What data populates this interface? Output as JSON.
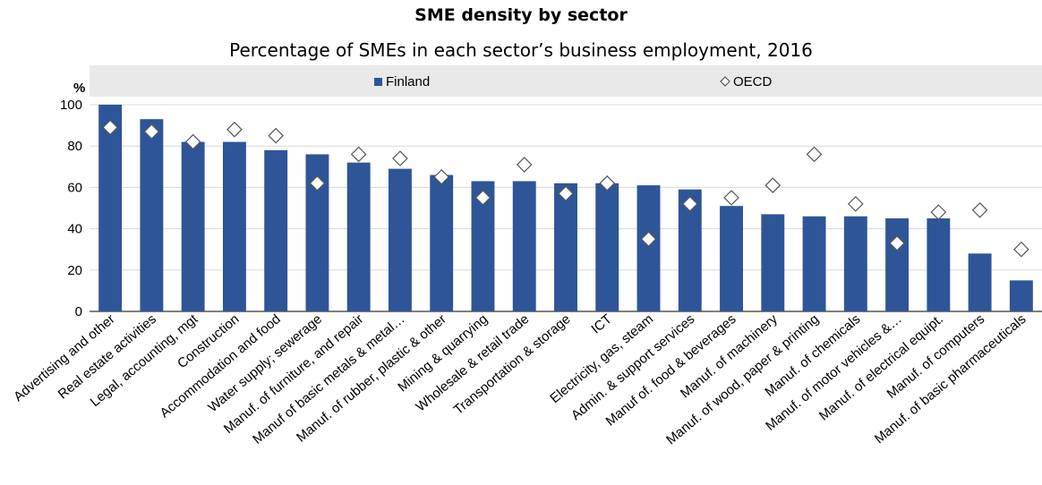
{
  "chart_data": {
    "type": "bar",
    "title": "SME density by sector",
    "subtitle": "Percentage of SMEs in each sector’s business employment, 2016",
    "ylabel": "%",
    "ylim": [
      0,
      100
    ],
    "yticks": [
      0,
      20,
      40,
      60,
      80,
      100
    ],
    "legend_position": "top",
    "categories": [
      "Advertising and other",
      "Real estate activities",
      "Legal, accounting, mgt",
      "Construction",
      "Accommodation and food",
      "Water supply; sewerage",
      "Manuf. of furniture, and repair",
      "Manuf of basic metals & metal…",
      "Manuf. of rubber, plastic & other",
      "Mining & quarrying",
      "Wholesale & retail trade",
      "Transportation & storage",
      "ICT",
      "Electricity, gas, steam",
      "Admin. & support services",
      "Manuf of. food & beverages",
      "Manuf. of machinery",
      "Manuf. of wood, paper & printing",
      "Manuf. of chemicals",
      "Manuf. of motor vehicles &…",
      "Manuf. of electrical equipt.",
      "Manuf. of computers",
      "Manuf. of basic pharmaceuticals"
    ],
    "series": [
      {
        "name": "Finland",
        "type": "bar",
        "color": "#2e5597",
        "values": [
          100,
          93,
          82,
          82,
          78,
          76,
          72,
          69,
          66,
          63,
          63,
          62,
          62,
          61,
          59,
          51,
          47,
          46,
          46,
          45,
          45,
          28,
          15
        ]
      },
      {
        "name": "OECD",
        "type": "marker",
        "marker": "diamond",
        "values": [
          89,
          87,
          82,
          88,
          85,
          62,
          76,
          74,
          65,
          55,
          71,
          57,
          62,
          35,
          52,
          55,
          61,
          76,
          52,
          33,
          48,
          49,
          30
        ]
      }
    ],
    "legend": [
      "Finland",
      "OECD"
    ],
    "colors": {
      "plot_bg": "#ffffff",
      "legend_band": "#e9e9e9",
      "grid": "#d9d9d9",
      "bar": "#2e5597",
      "marker_fill": "#ffffff",
      "marker_stroke": "#555555"
    }
  }
}
